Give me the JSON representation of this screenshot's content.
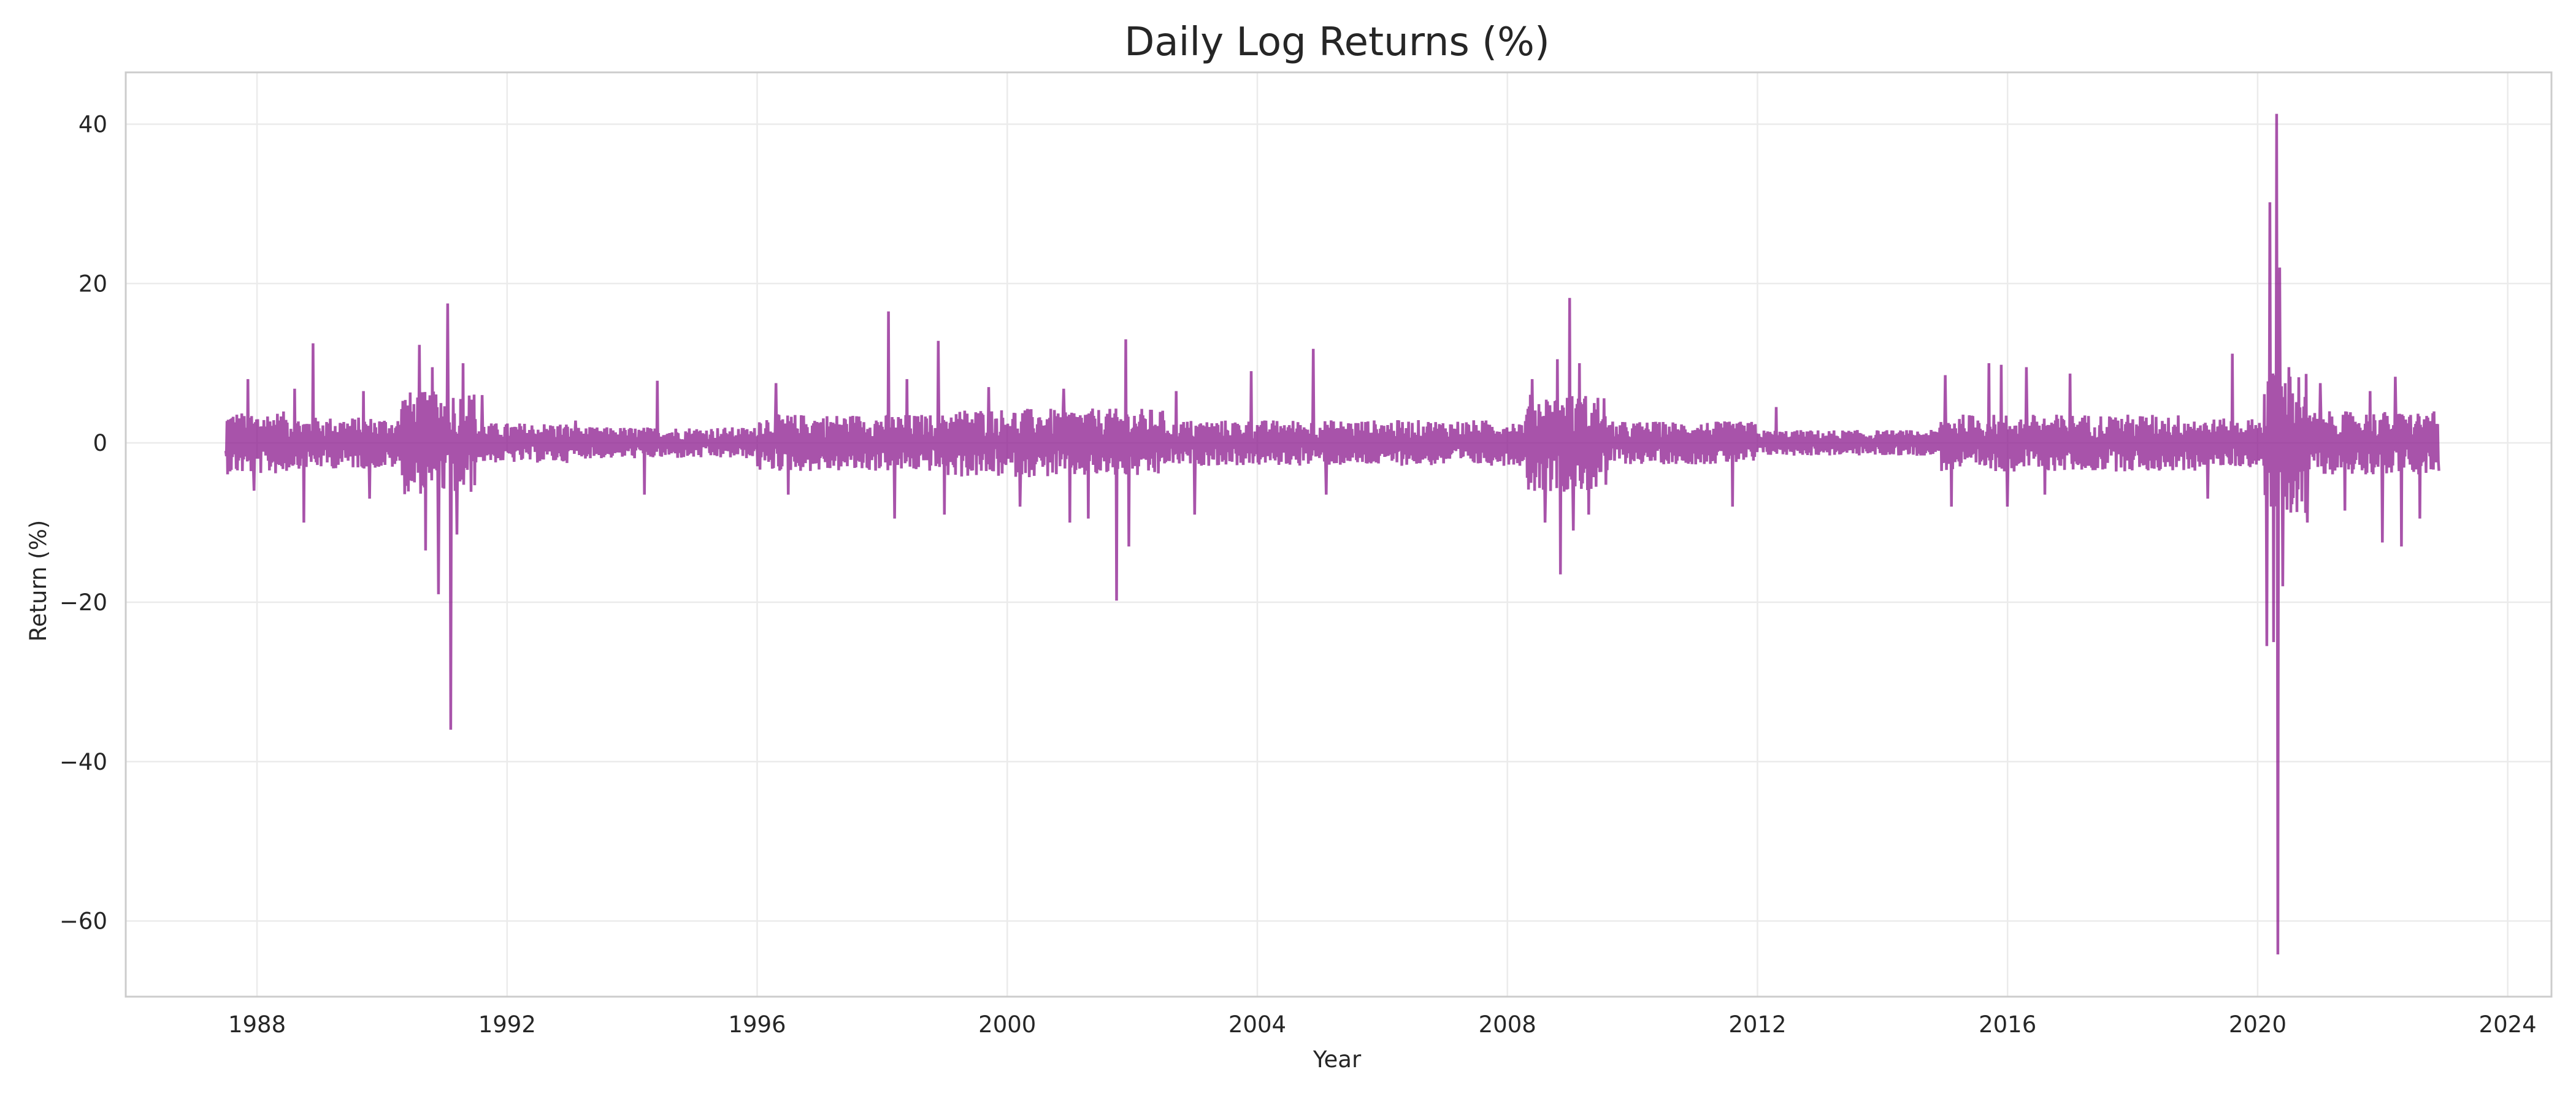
{
  "chart_data": {
    "type": "line",
    "title": "Daily Log Returns (%)",
    "xlabel": "Year",
    "ylabel": "Return (%)",
    "xlim": [
      1985.9,
      2024.7
    ],
    "ylim": [
      -69.5,
      46.5
    ],
    "x_ticks": [
      1988,
      1992,
      1996,
      2000,
      2004,
      2008,
      2012,
      2016,
      2020,
      2024
    ],
    "x_tick_labels": [
      "1988",
      "1992",
      "1996",
      "2000",
      "2004",
      "2008",
      "2012",
      "2016",
      "2020",
      "2024"
    ],
    "y_ticks": [
      40,
      20,
      0,
      -20,
      -40,
      -60
    ],
    "y_tick_labels": [
      "40",
      "20",
      "0",
      "−20",
      "−40",
      "−60"
    ],
    "grid": true,
    "legend": "none",
    "color": "#8b1a8e",
    "series": [
      {
        "x_range": [
          1987.5,
          2022.9
        ],
        "volatility_regimes": [
          [
            1987.5,
            1988.5,
            2.2
          ],
          [
            1988.5,
            1990.3,
            1.8
          ],
          [
            1990.3,
            1991.5,
            3.6
          ],
          [
            1991.5,
            1993.0,
            1.4
          ],
          [
            1993.0,
            1996.0,
            1.1
          ],
          [
            1996.0,
            1999.0,
            2.0
          ],
          [
            1999.0,
            2002.5,
            2.4
          ],
          [
            2002.5,
            2008.3,
            1.6
          ],
          [
            2008.3,
            2009.6,
            3.4
          ],
          [
            2009.6,
            2012.0,
            1.5
          ],
          [
            2012.0,
            2014.9,
            0.9
          ],
          [
            2014.9,
            2019.0,
            2.0
          ],
          [
            2019.0,
            2020.1,
            1.7
          ],
          [
            2020.1,
            2020.8,
            5.0
          ],
          [
            2020.8,
            2022.9,
            2.2
          ]
        ],
        "spikes": [
          [
            1987.85,
            8.0
          ],
          [
            1987.95,
            -6.0
          ],
          [
            1988.6,
            6.8
          ],
          [
            1988.75,
            -10.0
          ],
          [
            1988.9,
            12.5
          ],
          [
            1989.7,
            6.5
          ],
          [
            1989.8,
            -7.0
          ],
          [
            1990.6,
            12.3
          ],
          [
            1990.7,
            -13.5
          ],
          [
            1990.8,
            9.5
          ],
          [
            1990.9,
            -19.0
          ],
          [
            1991.05,
            17.5
          ],
          [
            1991.1,
            -36.0
          ],
          [
            1991.2,
            -11.5
          ],
          [
            1991.3,
            10.0
          ],
          [
            1991.6,
            6.0
          ],
          [
            1993.1,
            2.8
          ],
          [
            1994.2,
            -6.5
          ],
          [
            1994.4,
            7.8
          ],
          [
            1996.3,
            7.5
          ],
          [
            1996.5,
            -6.5
          ],
          [
            1998.1,
            16.5
          ],
          [
            1998.2,
            -9.5
          ],
          [
            1998.4,
            8.0
          ],
          [
            1998.9,
            12.8
          ],
          [
            1999.0,
            -9.0
          ],
          [
            1999.7,
            7.0
          ],
          [
            2000.2,
            -8.0
          ],
          [
            2000.9,
            6.8
          ],
          [
            2001.0,
            -10.0
          ],
          [
            2001.3,
            -9.5
          ],
          [
            2001.75,
            -19.8
          ],
          [
            2001.9,
            13.0
          ],
          [
            2001.95,
            -13.0
          ],
          [
            2002.7,
            6.5
          ],
          [
            2003.0,
            -9.0
          ],
          [
            2003.9,
            9.0
          ],
          [
            2004.9,
            11.8
          ],
          [
            2005.1,
            -6.5
          ],
          [
            2008.4,
            8.0
          ],
          [
            2008.6,
            -10.0
          ],
          [
            2008.8,
            10.5
          ],
          [
            2008.85,
            -16.5
          ],
          [
            2009.0,
            18.2
          ],
          [
            2009.05,
            -11.0
          ],
          [
            2009.15,
            10.0
          ],
          [
            2009.3,
            -9.0
          ],
          [
            2011.6,
            -8.0
          ],
          [
            2012.3,
            4.5
          ],
          [
            2015.0,
            8.5
          ],
          [
            2015.1,
            -8.0
          ],
          [
            2015.7,
            10.0
          ],
          [
            2015.9,
            9.8
          ],
          [
            2016.0,
            -8.0
          ],
          [
            2016.3,
            9.5
          ],
          [
            2016.6,
            -6.5
          ],
          [
            2017.0,
            8.7
          ],
          [
            2019.2,
            -7.0
          ],
          [
            2019.6,
            11.2
          ],
          [
            2020.15,
            -25.5
          ],
          [
            2020.2,
            30.2
          ],
          [
            2020.25,
            -25.0
          ],
          [
            2020.3,
            41.3
          ],
          [
            2020.32,
            -64.2
          ],
          [
            2020.35,
            22.0
          ],
          [
            2020.4,
            -18.0
          ],
          [
            2020.5,
            9.5
          ],
          [
            2020.8,
            -10.0
          ],
          [
            2021.0,
            7.5
          ],
          [
            2021.4,
            -8.5
          ],
          [
            2021.8,
            6.5
          ],
          [
            2022.0,
            -12.5
          ],
          [
            2022.2,
            8.3
          ],
          [
            2022.3,
            -13.0
          ],
          [
            2022.6,
            -9.5
          ]
        ]
      }
    ]
  }
}
